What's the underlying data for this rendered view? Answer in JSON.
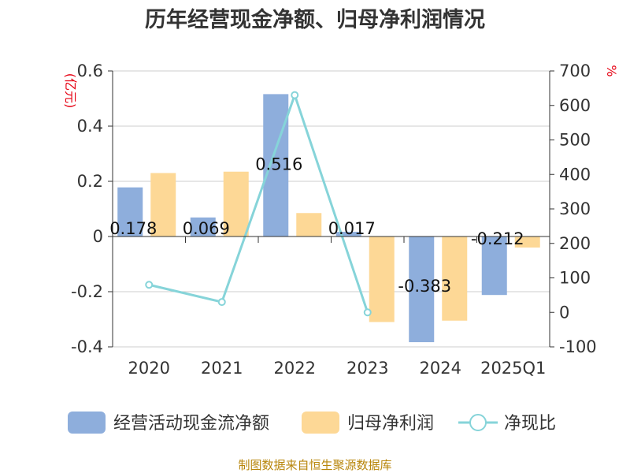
{
  "chart_data": {
    "type": "bar",
    "title": "历年经营现金净额、归母净利润情况",
    "categories": [
      "2020",
      "2021",
      "2022",
      "2023",
      "2024",
      "2025Q1"
    ],
    "y_left_unit": "(亿元)",
    "y_right_unit": "%",
    "y_left_ticks": [
      "0.6",
      "0.4",
      "0.2",
      "0",
      "-0.2",
      "-0.4"
    ],
    "y_right_ticks": [
      "700",
      "600",
      "500",
      "400",
      "300",
      "200",
      "100",
      "0",
      "-100"
    ],
    "ylim_left": [
      -0.4,
      0.6
    ],
    "ylim_right": [
      -100,
      700
    ],
    "series": [
      {
        "name": "经营活动现金流净额",
        "type": "bar",
        "axis": "left",
        "color": "#8eaedc",
        "values": [
          0.178,
          0.069,
          0.516,
          0.017,
          -0.383,
          -0.212
        ],
        "labels": [
          "0.178",
          "0.069",
          "0.516",
          "0.017",
          "-0.383",
          "-0.212"
        ]
      },
      {
        "name": "归母净利润",
        "type": "bar",
        "axis": "left",
        "color": "#fdd896",
        "values": [
          0.23,
          0.235,
          0.085,
          -0.31,
          -0.305,
          -0.04
        ]
      },
      {
        "name": "净现比",
        "type": "line",
        "axis": "right",
        "color": "#86d4d9",
        "values": [
          80,
          30,
          630,
          0,
          null,
          null
        ]
      }
    ],
    "source": "制图数据来自恒生聚源数据库"
  }
}
